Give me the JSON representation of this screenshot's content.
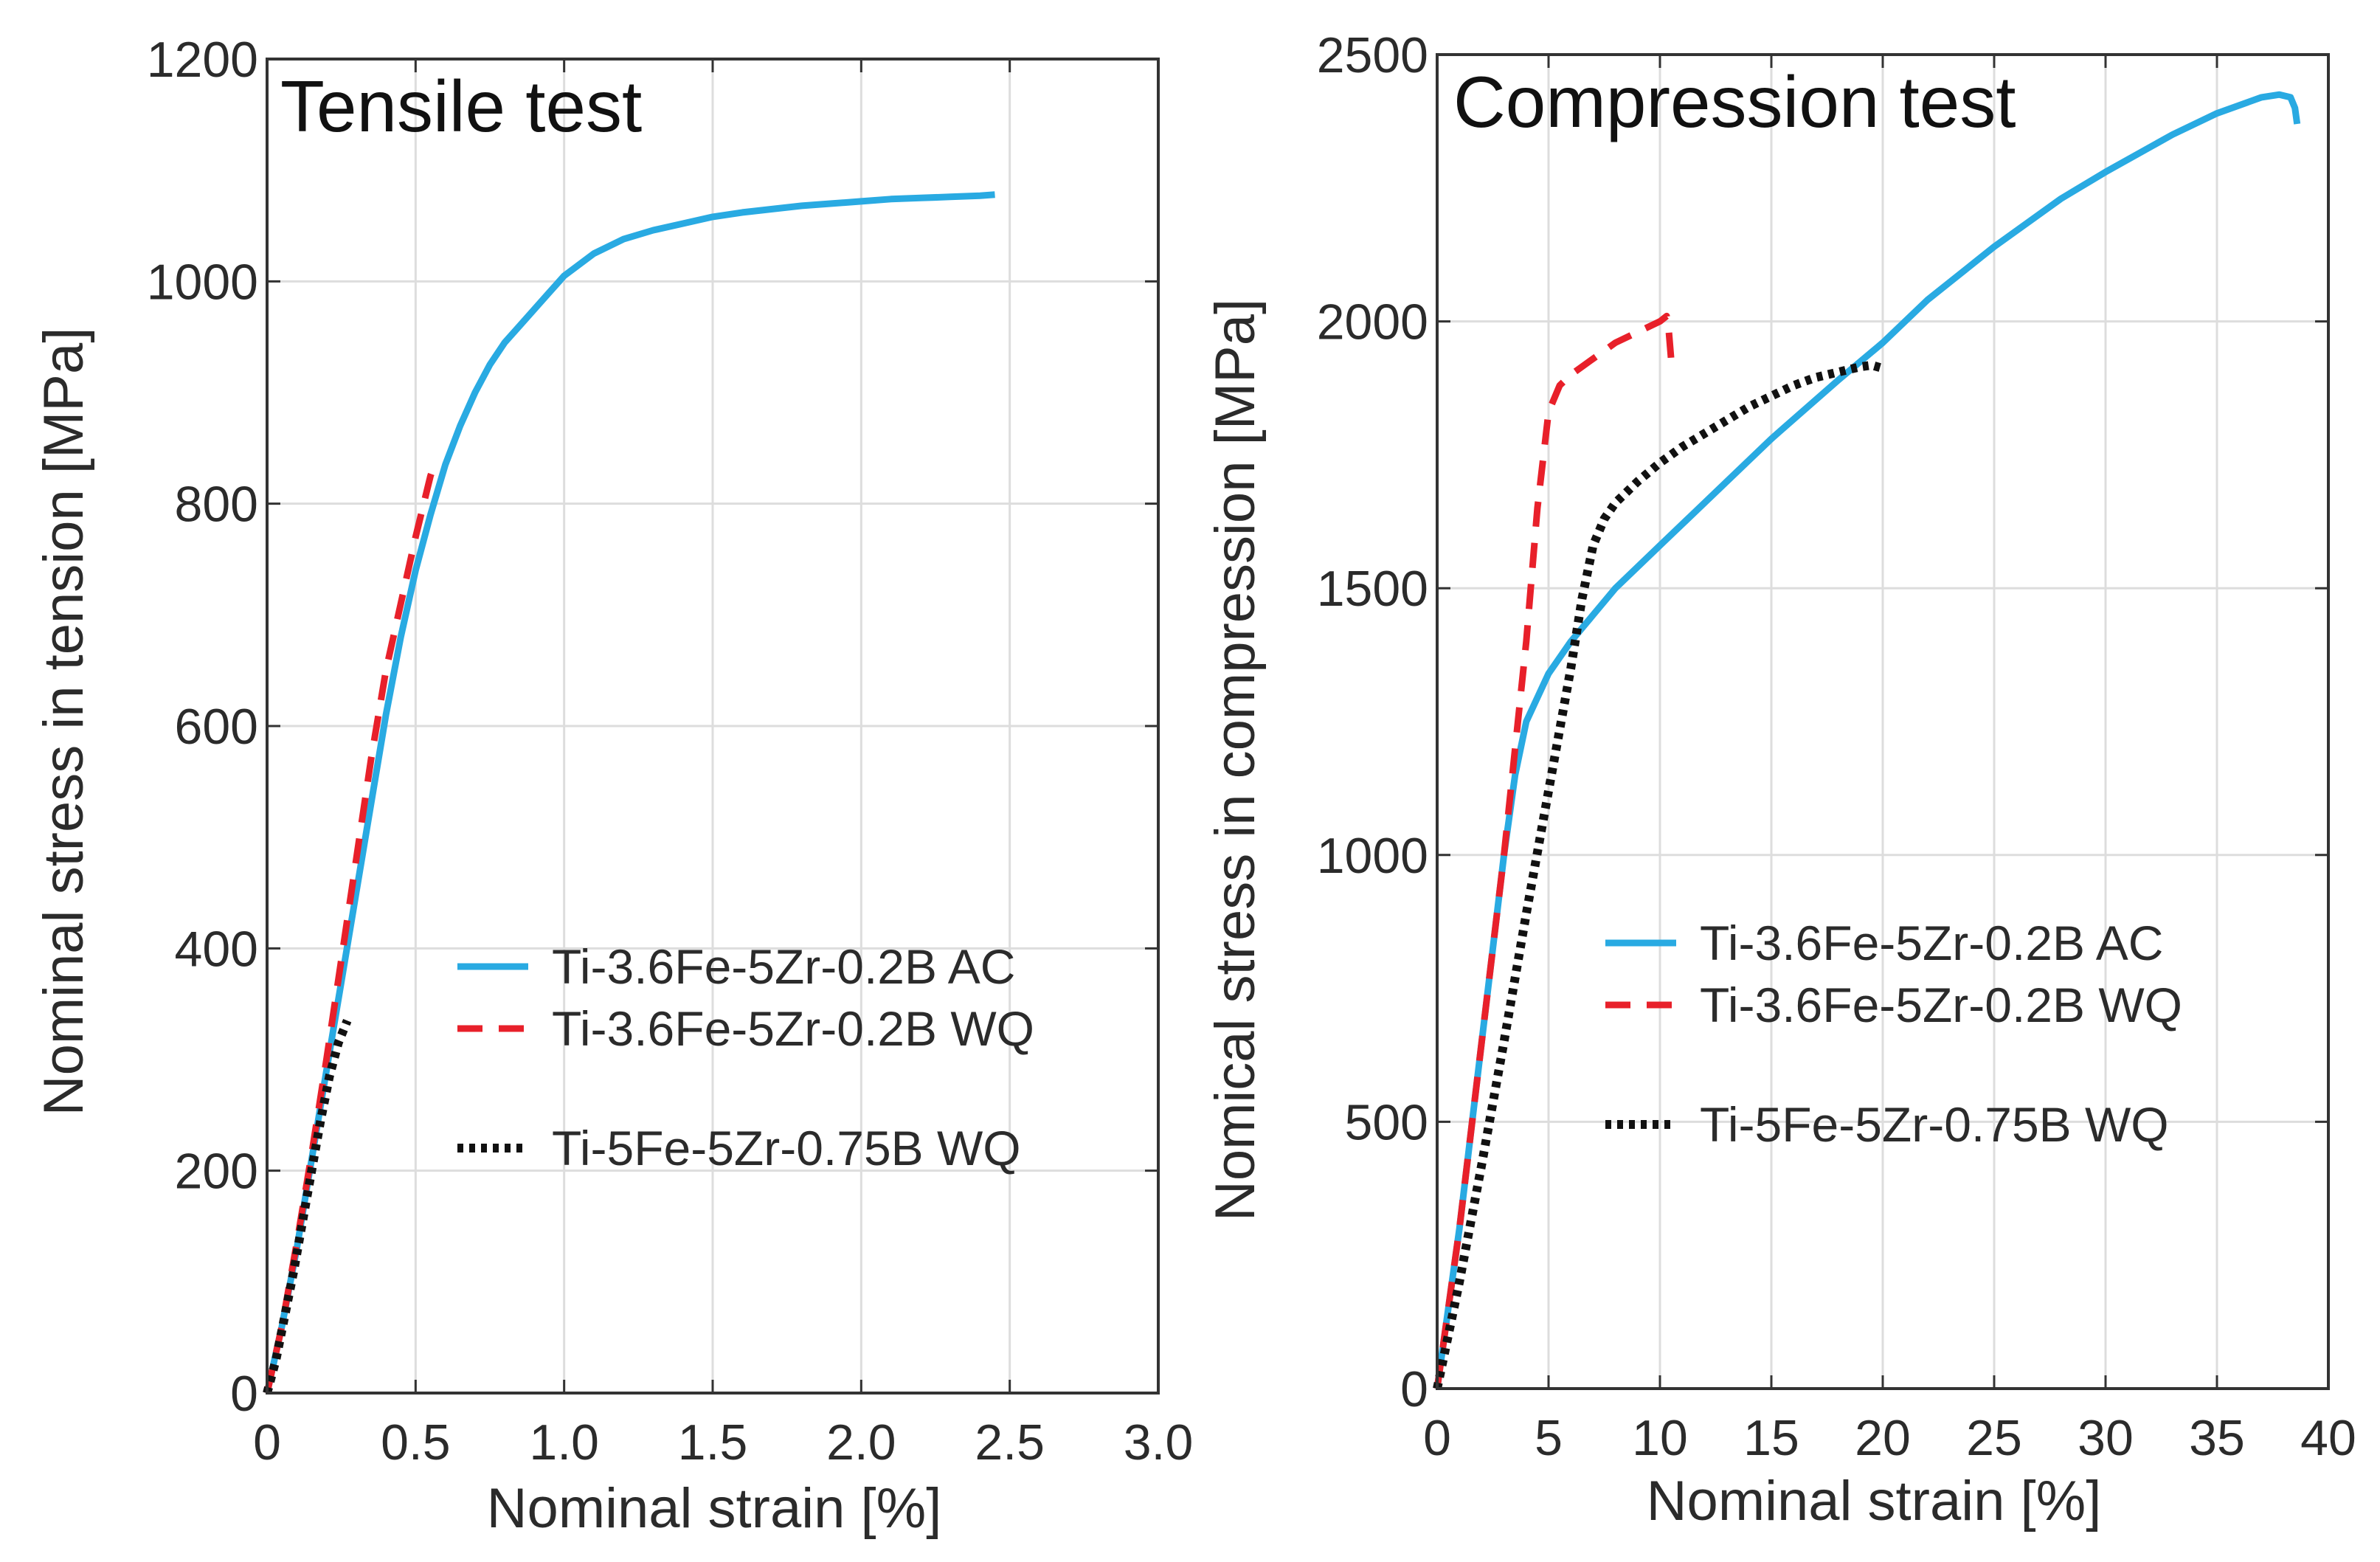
{
  "chart_data": [
    {
      "type": "line",
      "title": "Tensile test",
      "xlabel": "Nominal strain [%]",
      "ylabel": "Nominal stress in tension [MPa]",
      "xlim": [
        0,
        3.0
      ],
      "ylim": [
        0,
        1200
      ],
      "xticks": [
        "0",
        "0.5",
        "1.0",
        "1.5",
        "2.0",
        "2.5",
        "3.0"
      ],
      "xtick_values": [
        0,
        0.5,
        1.0,
        1.5,
        2.0,
        2.5,
        3.0
      ],
      "yticks": [
        "0",
        "200",
        "400",
        "600",
        "800",
        "1000",
        "1200"
      ],
      "ytick_values": [
        0,
        200,
        400,
        600,
        800,
        1000,
        1200
      ],
      "grid": true,
      "legend_position": "center-right",
      "series": [
        {
          "name": "Ti-3.6Fe-5Zr-0.2B AC",
          "color": "#29aae2",
          "style": "solid",
          "x": [
            0,
            0.05,
            0.1,
            0.15,
            0.2,
            0.25,
            0.3,
            0.35,
            0.4,
            0.45,
            0.5,
            0.55,
            0.6,
            0.65,
            0.7,
            0.75,
            0.8,
            0.85,
            0.9,
            0.95,
            1.0,
            1.1,
            1.2,
            1.3,
            1.4,
            1.5,
            1.6,
            1.7,
            1.8,
            1.9,
            2.0,
            2.1,
            2.2,
            2.3,
            2.4,
            2.45
          ],
          "y": [
            0,
            60,
            130,
            210,
            290,
            370,
            450,
            530,
            610,
            680,
            740,
            790,
            835,
            870,
            900,
            925,
            945,
            960,
            975,
            990,
            1005,
            1025,
            1038,
            1046,
            1052,
            1058,
            1062,
            1065,
            1068,
            1070,
            1072,
            1074,
            1075,
            1076,
            1077,
            1078
          ]
        },
        {
          "name": "Ti-3.6Fe-5Zr-0.2B WQ",
          "color": "#e8202a",
          "style": "dashed",
          "x": [
            0,
            0.05,
            0.1,
            0.15,
            0.2,
            0.25,
            0.3,
            0.35,
            0.4,
            0.45,
            0.5,
            0.55,
            0.57
          ],
          "y": [
            0,
            60,
            135,
            215,
            300,
            390,
            480,
            570,
            650,
            710,
            770,
            825,
            840
          ]
        },
        {
          "name": "Ti-5Fe-5Zr-0.75B WQ",
          "color": "#111111",
          "style": "dotted",
          "x": [
            0,
            0.03,
            0.06,
            0.09,
            0.12,
            0.15,
            0.18,
            0.21,
            0.24,
            0.27
          ],
          "y": [
            0,
            30,
            70,
            110,
            155,
            200,
            245,
            285,
            315,
            335
          ]
        }
      ]
    },
    {
      "type": "line",
      "title": "Compression test",
      "xlabel": "Nominal strain [%]",
      "ylabel": "Nomical stress in compression [MPa]",
      "xlim": [
        0,
        40
      ],
      "ylim": [
        0,
        2500
      ],
      "xticks": [
        "0",
        "5",
        "10",
        "15",
        "20",
        "25",
        "30",
        "35",
        "40"
      ],
      "xtick_values": [
        0,
        5,
        10,
        15,
        20,
        25,
        30,
        35,
        40
      ],
      "yticks": [
        "0",
        "500",
        "1000",
        "1500",
        "2000",
        "2500"
      ],
      "ytick_values": [
        0,
        500,
        1000,
        1500,
        2000,
        2500
      ],
      "grid": true,
      "legend_position": "center-right",
      "series": [
        {
          "name": "Ti-3.6Fe-5Zr-0.2B AC",
          "color": "#29aae2",
          "style": "solid",
          "x": [
            0,
            1,
            2,
            3,
            3.5,
            4,
            5,
            6,
            7,
            8,
            10,
            12,
            15,
            18,
            20,
            22,
            25,
            28,
            30,
            33,
            35,
            37,
            37.8,
            38.3,
            38.5,
            38.6
          ],
          "y": [
            0,
            300,
            650,
            1000,
            1150,
            1250,
            1340,
            1400,
            1450,
            1500,
            1580,
            1660,
            1780,
            1890,
            1960,
            2040,
            2140,
            2230,
            2280,
            2350,
            2390,
            2420,
            2425,
            2420,
            2400,
            2370
          ]
        },
        {
          "name": "Ti-3.6Fe-5Zr-0.2B WQ",
          "color": "#e8202a",
          "style": "dashed",
          "x": [
            0,
            1,
            2,
            3,
            4,
            4.5,
            5,
            5.5,
            6,
            7,
            8,
            9,
            10,
            10.3,
            10.4,
            10.5
          ],
          "y": [
            0,
            300,
            650,
            1000,
            1400,
            1650,
            1830,
            1880,
            1900,
            1930,
            1960,
            1980,
            2000,
            2010,
            1980,
            1930
          ]
        },
        {
          "name": "Ti-5Fe-5Zr-0.75B WQ",
          "color": "#111111",
          "style": "dotted",
          "x": [
            0,
            1,
            2,
            3,
            4,
            5,
            6,
            6.5,
            7,
            7.5,
            8,
            9,
            10,
            11,
            12,
            13,
            14,
            15,
            16,
            17,
            18,
            19,
            19.5,
            20
          ],
          "y": [
            0,
            200,
            420,
            650,
            890,
            1120,
            1350,
            1480,
            1580,
            1630,
            1660,
            1700,
            1735,
            1765,
            1790,
            1815,
            1840,
            1860,
            1880,
            1895,
            1905,
            1915,
            1918,
            1912
          ]
        }
      ]
    }
  ]
}
